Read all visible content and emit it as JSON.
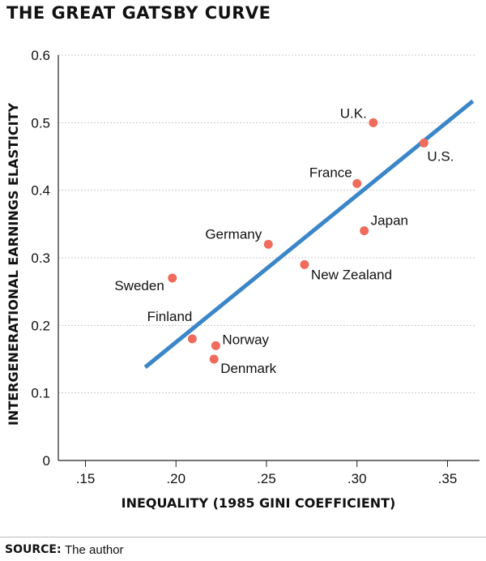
{
  "header": {
    "title": "THE GREAT GATSBY CURVE"
  },
  "footer": {
    "source_label": "SOURCE:",
    "source_text": "The author"
  },
  "colors": {
    "point": "#ef6b5b",
    "trend": "#3a86c8",
    "grid": "#c8c8c8",
    "axis": "#222222"
  },
  "chart_data": {
    "type": "scatter",
    "xlabel": "INEQUALITY (1985 GINI COEFFICIENT)",
    "ylabel": "INTERGENERATIONAL EARNINGS ELASTICITY",
    "xlim": [
      0.135,
      0.365
    ],
    "ylim": [
      0,
      0.6
    ],
    "x_ticks": [
      0.15,
      0.2,
      0.25,
      0.3,
      0.35
    ],
    "x_tick_labels": [
      ".15",
      ".20",
      ".25",
      ".30",
      ".35"
    ],
    "y_ticks": [
      0,
      0.1,
      0.2,
      0.3,
      0.4,
      0.5,
      0.6
    ],
    "y_tick_labels": [
      "0",
      "0.1",
      "0.2",
      "0.3",
      "0.4",
      "0.5",
      "0.6"
    ],
    "grid": "horizontal",
    "points": [
      {
        "label": "U.K.",
        "x": 0.309,
        "y": 0.5
      },
      {
        "label": "U.S.",
        "x": 0.337,
        "y": 0.47
      },
      {
        "label": "France",
        "x": 0.3,
        "y": 0.41
      },
      {
        "label": "Japan",
        "x": 0.304,
        "y": 0.34
      },
      {
        "label": "Germany",
        "x": 0.251,
        "y": 0.32
      },
      {
        "label": "New Zealand",
        "x": 0.271,
        "y": 0.29
      },
      {
        "label": "Sweden",
        "x": 0.198,
        "y": 0.27
      },
      {
        "label": "Finland",
        "x": 0.209,
        "y": 0.18
      },
      {
        "label": "Norway",
        "x": 0.222,
        "y": 0.17
      },
      {
        "label": "Denmark",
        "x": 0.221,
        "y": 0.15
      }
    ],
    "trend_line": {
      "x": [
        0.183,
        0.364
      ],
      "y": [
        0.138,
        0.532
      ]
    }
  }
}
